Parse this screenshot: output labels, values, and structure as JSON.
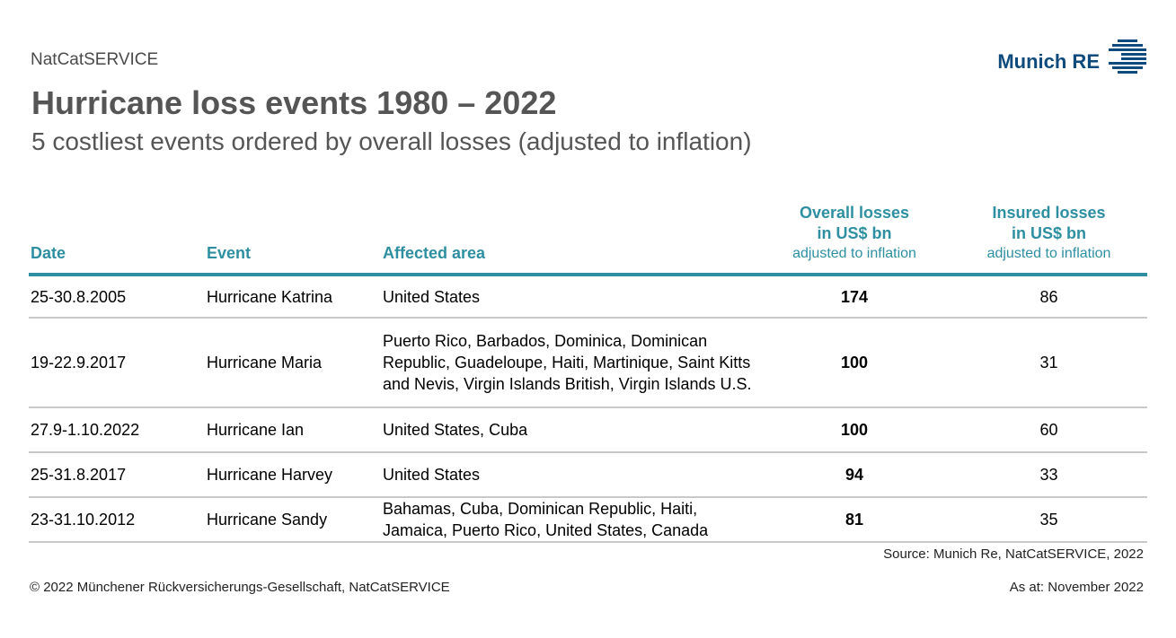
{
  "header": {
    "service": "NatCatSERVICE",
    "logo_text": "Munich RE",
    "title": "Hurricane loss events 1980 – 2022",
    "subtitle": "5 costliest events ordered by overall losses (adjusted to inflation)"
  },
  "table": {
    "columns": {
      "date": "Date",
      "event": "Event",
      "area": "Affected area",
      "overall_line1": "Overall losses",
      "overall_line2": "in US$ bn",
      "overall_sub": "adjusted to inflation",
      "insured_line1": "Insured losses",
      "insured_line2": "in US$ bn",
      "insured_sub": "adjusted to inflation"
    },
    "rows": [
      {
        "date": "25-30.8.2005",
        "event": "Hurricane Katrina",
        "area": "United States",
        "overall": "174",
        "insured": "86"
      },
      {
        "date": "19-22.9.2017",
        "event": "Hurricane Maria",
        "area": "Puerto Rico, Barbados, Dominica, Dominican Republic, Guadeloupe, Haiti, Martinique, Saint Kitts and Nevis, Virgin Islands British, Virgin Islands U.S.",
        "overall": "100",
        "insured": "31"
      },
      {
        "date": "27.9-1.10.2022",
        "event": "Hurricane Ian",
        "area": "United States, Cuba",
        "overall": "100",
        "insured": "60"
      },
      {
        "date": "25-31.8.2017",
        "event": "Hurricane Harvey",
        "area": "United States",
        "overall": "94",
        "insured": "33"
      },
      {
        "date": "23-31.10.2012",
        "event": "Hurricane Sandy",
        "area": "Bahamas, Cuba, Dominican Republic, Haiti, Jamaica, Puerto Rico, United States, Canada",
        "overall": "81",
        "insured": "35"
      }
    ]
  },
  "source": "Source: Munich Re, NatCatSERVICE, 2022",
  "footer": {
    "copyright": "© 2022 Münchener Rückversicherungs-Gesellschaft, NatCatSERVICE",
    "as_at": "As at: November 2022"
  },
  "colors": {
    "accent": "#2e8fa1",
    "brand": "#0e4a7b",
    "title": "#555555",
    "row_divider": "#c9c9c9"
  },
  "icons": {
    "logo": "munich-re-logo-icon"
  }
}
